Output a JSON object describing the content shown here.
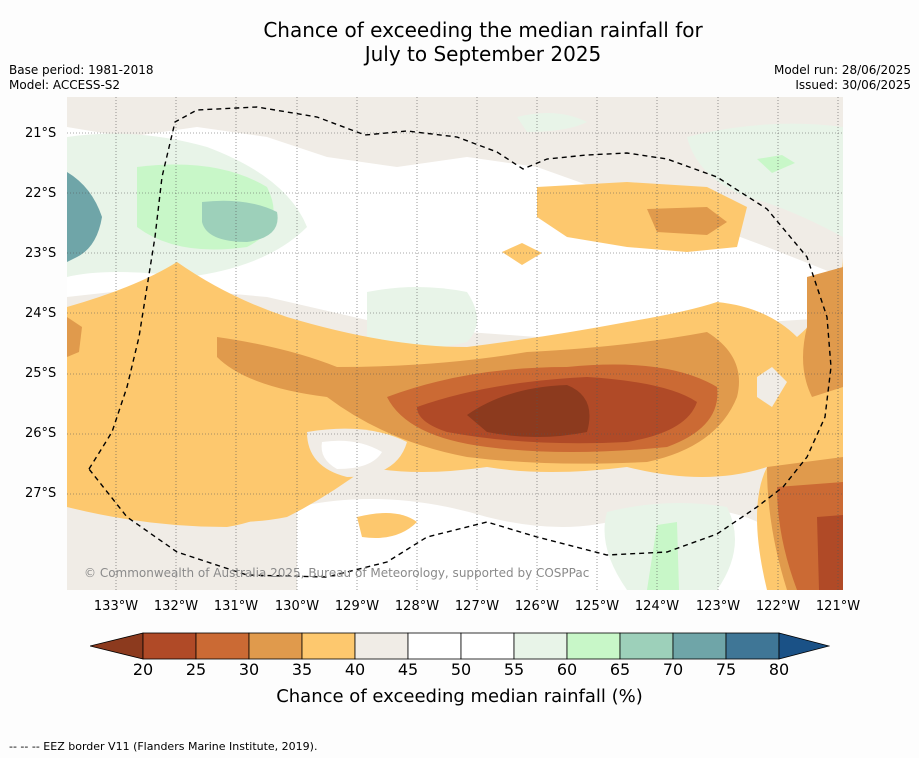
{
  "title_line1": "Chance of exceeding the median rainfall for",
  "title_line2": "July to September 2025",
  "base_period": "Base period: 1981-2018",
  "model": "Model: ACCESS-S2",
  "model_run": "Model run: 28/06/2025",
  "issued": "Issued: 30/06/2025",
  "copyright": "© Commonwealth of Australia 2025, Bureau of Meteorology, supported by COSPPac",
  "lat_labels": [
    "21°S",
    "22°S",
    "23°S",
    "24°S",
    "25°S",
    "26°S",
    "27°S"
  ],
  "lon_labels": [
    "133°W",
    "132°W",
    "131°W",
    "130°W",
    "129°W",
    "128°W",
    "127°W",
    "126°W",
    "125°W",
    "124°W",
    "123°W",
    "122°W",
    "121°W"
  ],
  "colorbar": {
    "ticks": [
      "20",
      "25",
      "30",
      "35",
      "40",
      "45",
      "50",
      "55",
      "60",
      "65",
      "70",
      "75",
      "80"
    ],
    "colors": [
      "#8c3a1e",
      "#b04a27",
      "#cb6a34",
      "#e09a4c",
      "#fdc86e",
      "#f0ece6",
      "#ffffff",
      "#ffffff",
      "#e8f4e8",
      "#c8f7c8",
      "#9dd0ba",
      "#6fa5a8",
      "#3f7696",
      "#1a5186"
    ],
    "label": "Chance of exceeding median rainfall (%)"
  },
  "footer": "--  --  -- EEZ border V11 (Flanders Marine Institute, 2019).",
  "colors": {
    "c20": "#8c3a1e",
    "c25": "#b04a27",
    "c30": "#cb6a34",
    "c35": "#e09a4c",
    "c40": "#fdc86e",
    "c45": "#f0ece6",
    "c60": "#e8f4e8",
    "c65": "#c8f7c8",
    "c70": "#9dd0ba",
    "c75": "#6fa5a8",
    "c80": "#3f7696"
  }
}
